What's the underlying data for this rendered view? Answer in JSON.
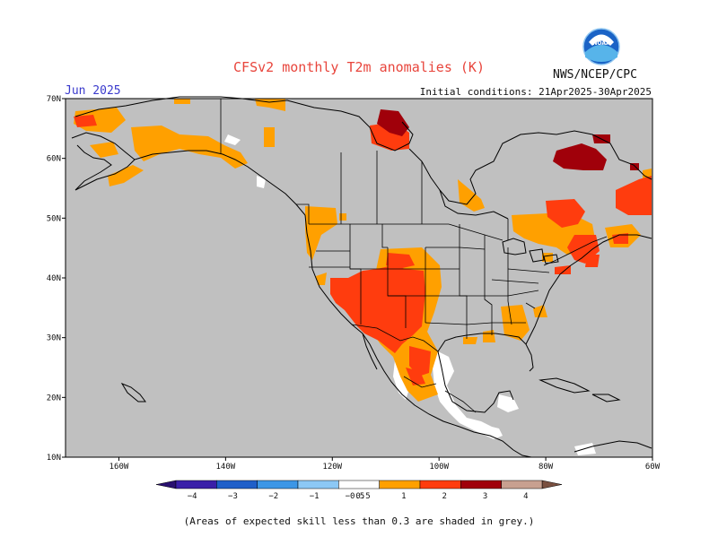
{
  "header": {
    "title": "CFSv2 monthly T2m anomalies (K)",
    "month": "Jun 2025",
    "initial_conditions": "Initial conditions: 21Apr2025-30Apr2025",
    "agency": "NWS/NCEP/CPC",
    "logo_text": "NOAA"
  },
  "map": {
    "projection": "lat-lon",
    "lon_range": [
      -170,
      -60
    ],
    "lat_range": [
      10,
      70
    ],
    "lat_ticks": [
      {
        "value": 70,
        "label": "70N"
      },
      {
        "value": 60,
        "label": "60N"
      },
      {
        "value": 50,
        "label": "50N"
      },
      {
        "value": 40,
        "label": "40N"
      },
      {
        "value": 30,
        "label": "30N"
      },
      {
        "value": 20,
        "label": "20N"
      },
      {
        "value": 10,
        "label": "10N"
      }
    ],
    "lon_ticks": [
      {
        "value": -160,
        "label": "160W"
      },
      {
        "value": -140,
        "label": "140W"
      },
      {
        "value": -120,
        "label": "120W"
      },
      {
        "value": -100,
        "label": "100W"
      },
      {
        "value": -80,
        "label": "80W"
      },
      {
        "value": -60,
        "label": "60W"
      }
    ],
    "colors": {
      "low_skill": "#c0c0c0",
      "neutral": "#ffffff",
      "a05_1": "#ffa000",
      "a1_2": "#ff3c0e",
      "a2_3": "#a0000a",
      "border": "#000000"
    }
  },
  "colorbar": {
    "segments": [
      {
        "from": -4,
        "to": -3,
        "color": "#3a1fa8"
      },
      {
        "from": -3,
        "to": -2,
        "color": "#1f5fc9"
      },
      {
        "from": -2,
        "to": -1,
        "color": "#3c96e6"
      },
      {
        "from": -1,
        "to": -0.5,
        "color": "#8cc8f5"
      },
      {
        "from": -0.5,
        "to": 0.5,
        "color": "#ffffff"
      },
      {
        "from": 0.5,
        "to": 1,
        "color": "#ffa000"
      },
      {
        "from": 1,
        "to": 2,
        "color": "#ff3c0e"
      },
      {
        "from": 2,
        "to": 3,
        "color": "#a0000a"
      },
      {
        "from": 3,
        "to": 4,
        "color": "#c8a090"
      }
    ],
    "low_end_color": "#2a1070",
    "high_end_color": "#7a5040",
    "labels": [
      "−4",
      "−3",
      "−2",
      "−1",
      "−0.5",
      "0.5",
      "1",
      "2",
      "3",
      "4"
    ]
  },
  "footnote": "(Areas of expected skill less than 0.3 are shaded in grey.)"
}
